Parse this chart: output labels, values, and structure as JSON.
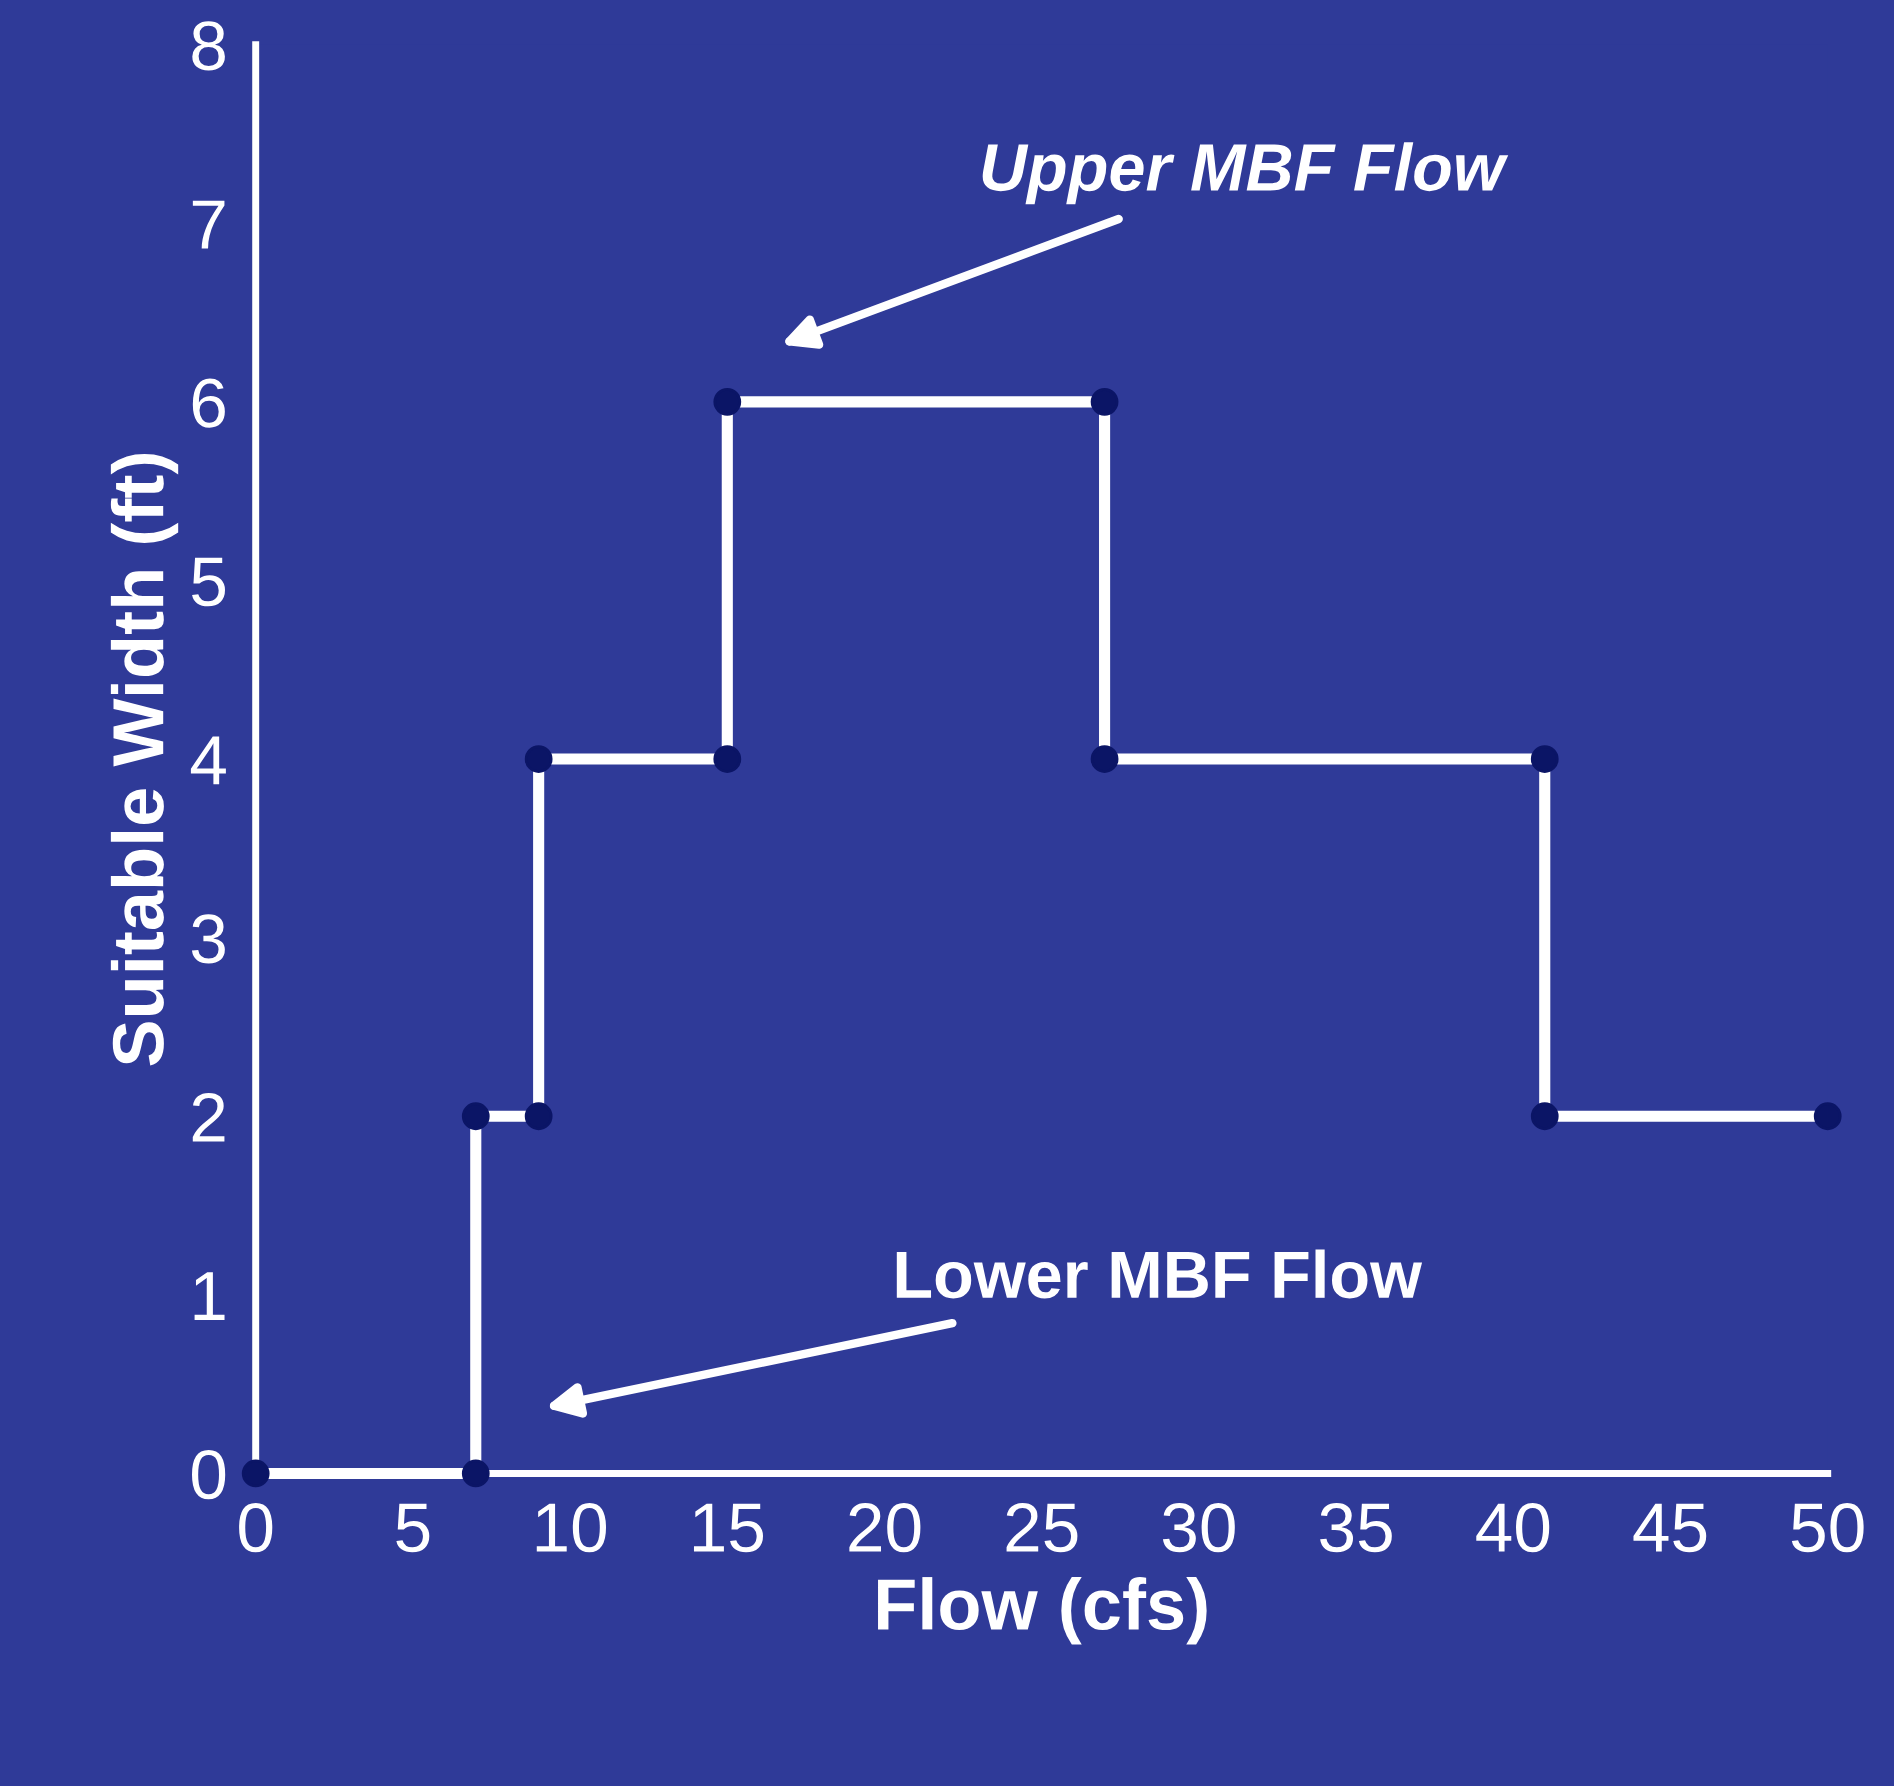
{
  "chart_data": {
    "type": "line",
    "xlabel": "Flow (cfs)",
    "ylabel": "Suitable Width (ft)",
    "series": [
      {
        "color": "#ffffff",
        "x": [
          0,
          7,
          7,
          9,
          9,
          15,
          15,
          27,
          27,
          41,
          41,
          50
        ],
        "values": [
          0,
          0,
          2,
          2,
          4,
          4,
          6,
          6,
          4,
          4,
          2,
          2
        ]
      }
    ],
    "marker": "circle",
    "line_style": "solid",
    "grid": false,
    "legend": false,
    "xlim": [
      0,
      50
    ],
    "xticks": [
      0,
      5,
      10,
      15,
      20,
      25,
      30,
      35,
      40,
      45,
      50
    ],
    "ylim": [
      0,
      8
    ],
    "yticks": [
      0,
      1,
      2,
      3,
      4,
      5,
      6,
      7,
      8
    ],
    "annotations": [
      "Upper MBF Flow",
      "Lower MBF Flow"
    ]
  }
}
